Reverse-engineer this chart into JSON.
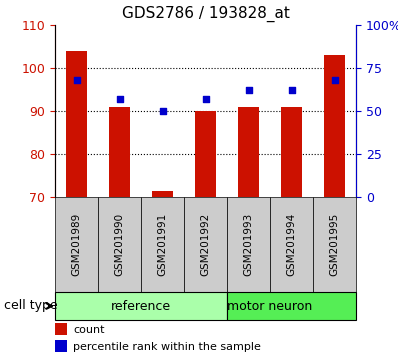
{
  "title": "GDS2786 / 193828_at",
  "samples": [
    "GSM201989",
    "GSM201990",
    "GSM201991",
    "GSM201992",
    "GSM201993",
    "GSM201994",
    "GSM201995"
  ],
  "cell_types": [
    "reference",
    "reference",
    "reference",
    "reference",
    "motor neuron",
    "motor neuron",
    "motor neuron"
  ],
  "bar_bottoms": [
    70,
    70,
    70,
    70,
    70,
    70,
    70
  ],
  "bar_tops": [
    104,
    91,
    71.5,
    90,
    91,
    91,
    103
  ],
  "percentile_ranks": [
    68,
    57,
    50,
    57,
    62,
    62,
    68
  ],
  "ylim_left": [
    70,
    110
  ],
  "ylim_right": [
    0,
    100
  ],
  "yticks_left": [
    70,
    80,
    90,
    100,
    110
  ],
  "yticks_right": [
    0,
    25,
    50,
    75,
    100
  ],
  "ytick_labels_right": [
    "0",
    "25",
    "50",
    "75",
    "100%"
  ],
  "bar_color": "#CC1100",
  "percentile_color": "#0000CC",
  "reference_color": "#AAFFAA",
  "motor_neuron_color": "#55EE55",
  "xlabel_bg_color": "#CCCCCC",
  "cell_type_label": "cell type",
  "legend_count": "count",
  "legend_percentile": "percentile rank within the sample",
  "reference_label": "reference",
  "motor_neuron_label": "motor neuron",
  "n_reference": 4,
  "n_motor": 3
}
